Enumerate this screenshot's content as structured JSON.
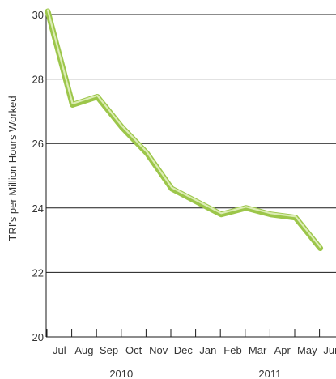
{
  "chart_data": {
    "type": "line",
    "title": "",
    "xlabel": "",
    "ylabel": "TRI's per Million Hours Worked",
    "ylim": [
      20,
      30
    ],
    "y_ticks": [
      20,
      22,
      24,
      26,
      28,
      30
    ],
    "grid": "horizontal",
    "categories": [
      "Jul",
      "Aug",
      "Sep",
      "Oct",
      "Nov",
      "Dec",
      "Jan",
      "Feb",
      "Mar",
      "Apr",
      "May",
      "Jun"
    ],
    "year_groups": [
      {
        "label": "2010",
        "start": 0,
        "end": 5
      },
      {
        "label": "2011",
        "start": 6,
        "end": 11
      }
    ],
    "series": [
      {
        "values": [
          30.1,
          27.2,
          27.45,
          26.5,
          25.7,
          24.6,
          24.2,
          23.8,
          24.0,
          23.8,
          23.7,
          22.75
        ],
        "color": "#9cc64a",
        "highlight_color": "#dcedb4"
      }
    ]
  }
}
